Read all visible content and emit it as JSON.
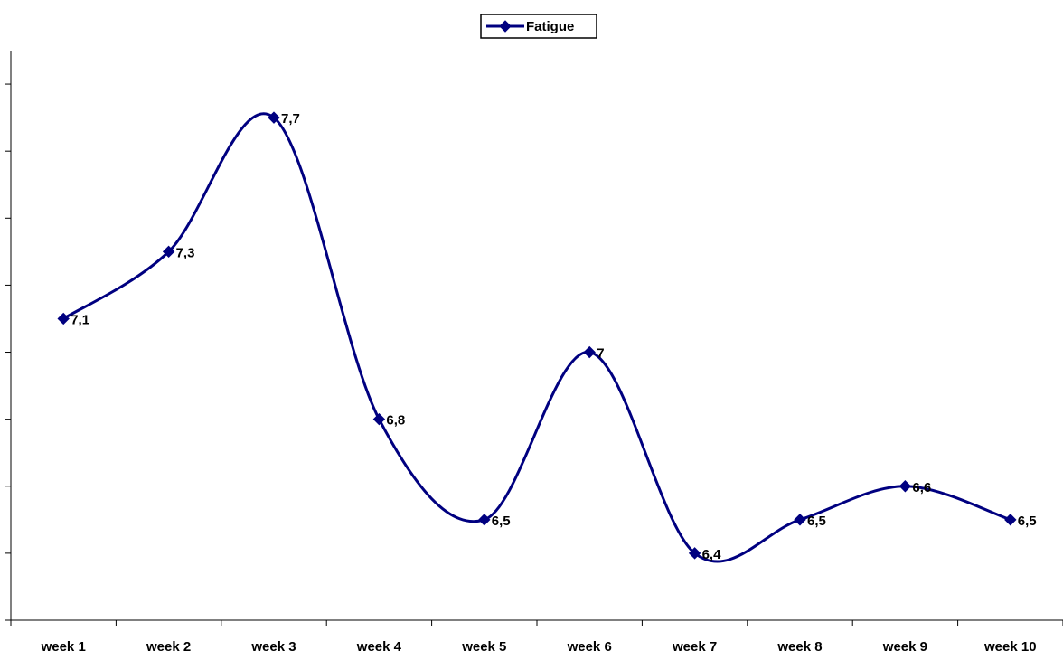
{
  "chart_data": {
    "type": "line",
    "title": "",
    "xlabel": "",
    "ylabel": "",
    "categories": [
      "week 1",
      "week 2",
      "week 3",
      "week 4",
      "week 5",
      "week 6",
      "week 7",
      "week 8",
      "week 9",
      "week 10"
    ],
    "series": [
      {
        "name": "Fatigue",
        "values": [
          7.1,
          7.3,
          7.7,
          6.8,
          6.5,
          7,
          6.4,
          6.5,
          6.6,
          6.5
        ],
        "labels": [
          "7,1",
          "7,3",
          "7,7",
          "6,8",
          "6,5",
          "7",
          "6,4",
          "6,5",
          "6,6",
          "6,5"
        ],
        "color": "#000080",
        "marker": "diamond",
        "smooth": true
      }
    ],
    "ylim": [
      6.2,
      7.9
    ],
    "y_ticks": [
      6.2,
      6.3,
      6.4,
      6.5,
      6.6,
      6.7,
      6.8,
      6.9,
      7.0,
      7.1,
      7.2,
      7.3,
      7.4,
      7.5,
      7.6,
      7.7,
      7.8,
      7.9
    ],
    "y_tick_labels_visible": false,
    "grid": false,
    "legend": "top-center"
  }
}
